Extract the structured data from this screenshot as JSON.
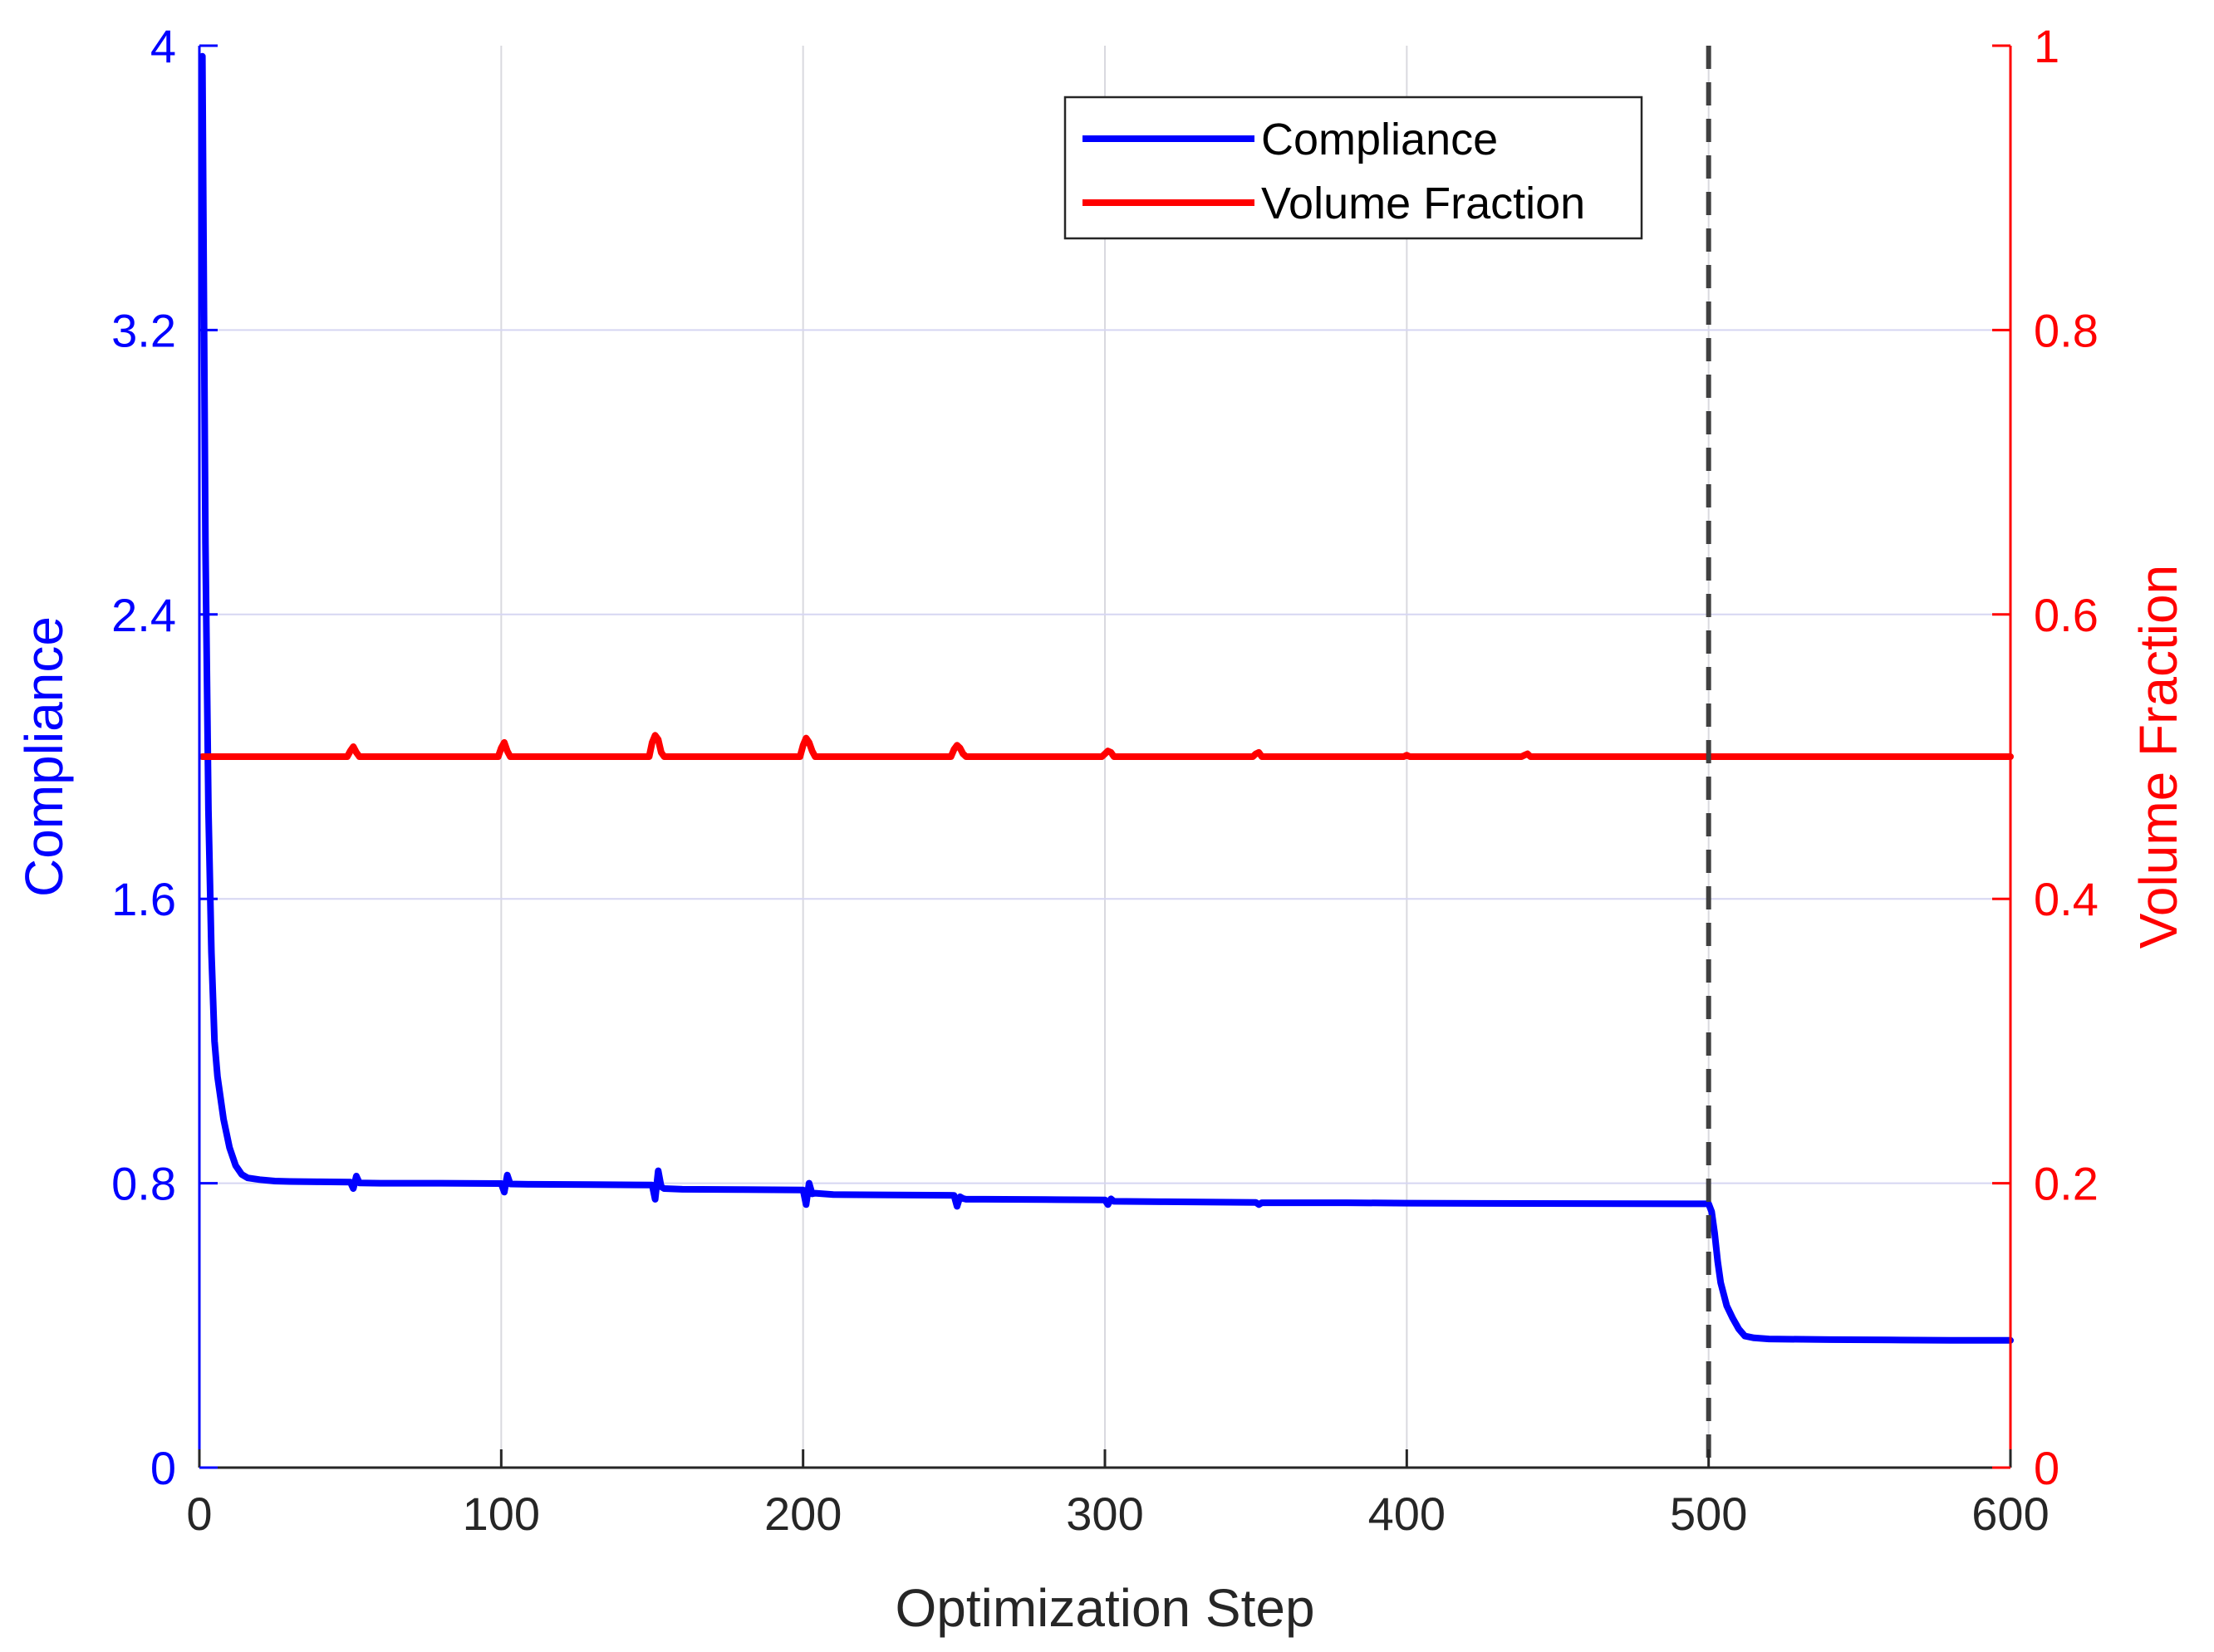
{
  "chart_data": {
    "type": "line",
    "xlabel": "Optimization Step",
    "ylabel_left": "Compliance",
    "ylabel_right": "Volume Fraction",
    "xlim": [
      0,
      600
    ],
    "ylim_left": [
      0,
      4
    ],
    "ylim_right": [
      0,
      1
    ],
    "xticks": [
      "0",
      "100",
      "200",
      "300",
      "400",
      "500",
      "600"
    ],
    "yticks_left": [
      "0",
      "0.8",
      "1.6",
      "2.4",
      "3.2",
      "4"
    ],
    "yticks_right": [
      "0",
      "0.2",
      "0.4",
      "0.6",
      "0.8",
      "1"
    ],
    "grid": true,
    "legend_position": "top-center",
    "vertical_marker_x": 500,
    "series": [
      {
        "name": "Compliance",
        "axis": "left",
        "color": "#0000ff",
        "x": [
          1,
          2,
          3,
          4,
          5,
          6,
          8,
          10,
          12,
          14,
          16,
          20,
          25,
          30,
          40,
          50,
          51,
          52,
          53,
          60,
          80,
          100,
          101,
          102,
          103,
          110,
          130,
          150,
          151,
          152,
          153,
          154,
          160,
          180,
          200,
          201,
          202,
          203,
          204,
          210,
          230,
          250,
          251,
          252,
          253,
          254,
          260,
          280,
          300,
          301,
          302,
          303,
          320,
          350,
          351,
          352,
          380,
          400,
          440,
          500,
          501,
          502,
          503,
          504,
          506,
          508,
          510,
          512,
          515,
          520,
          540,
          560,
          580,
          600
        ],
        "y": [
          3.97,
          2.6,
          1.85,
          1.45,
          1.2,
          1.1,
          0.98,
          0.9,
          0.85,
          0.825,
          0.815,
          0.81,
          0.806,
          0.805,
          0.804,
          0.803,
          0.785,
          0.82,
          0.801,
          0.8,
          0.8,
          0.799,
          0.775,
          0.823,
          0.798,
          0.797,
          0.796,
          0.795,
          0.755,
          0.835,
          0.79,
          0.785,
          0.783,
          0.782,
          0.781,
          0.74,
          0.8,
          0.77,
          0.772,
          0.768,
          0.767,
          0.766,
          0.735,
          0.762,
          0.757,
          0.755,
          0.755,
          0.754,
          0.753,
          0.74,
          0.756,
          0.749,
          0.748,
          0.746,
          0.74,
          0.745,
          0.745,
          0.744,
          0.743,
          0.742,
          0.72,
          0.66,
          0.58,
          0.52,
          0.455,
          0.42,
          0.39,
          0.37,
          0.365,
          0.362,
          0.36,
          0.359,
          0.358,
          0.358
        ]
      },
      {
        "name": "Volume Fraction",
        "axis": "right",
        "color": "#ff0000",
        "x": [
          1,
          49,
          50,
          51,
          52,
          53,
          99,
          100,
          101,
          102,
          103,
          149,
          150,
          151,
          152,
          153,
          154,
          199,
          200,
          201,
          202,
          203,
          204,
          249,
          250,
          251,
          252,
          253,
          254,
          299,
          300,
          301,
          302,
          303,
          349,
          350,
          351,
          352,
          399,
          400,
          401,
          438,
          439,
          440,
          441,
          600
        ],
        "y": [
          0.5,
          0.5,
          0.504,
          0.507,
          0.503,
          0.5,
          0.5,
          0.506,
          0.51,
          0.504,
          0.5,
          0.5,
          0.51,
          0.515,
          0.512,
          0.503,
          0.5,
          0.5,
          0.508,
          0.513,
          0.51,
          0.504,
          0.5,
          0.5,
          0.505,
          0.508,
          0.506,
          0.502,
          0.5,
          0.5,
          0.502,
          0.504,
          0.503,
          0.5,
          0.5,
          0.502,
          0.503,
          0.5,
          0.5,
          0.501,
          0.5,
          0.5,
          0.501,
          0.502,
          0.5,
          0.5
        ]
      }
    ]
  }
}
